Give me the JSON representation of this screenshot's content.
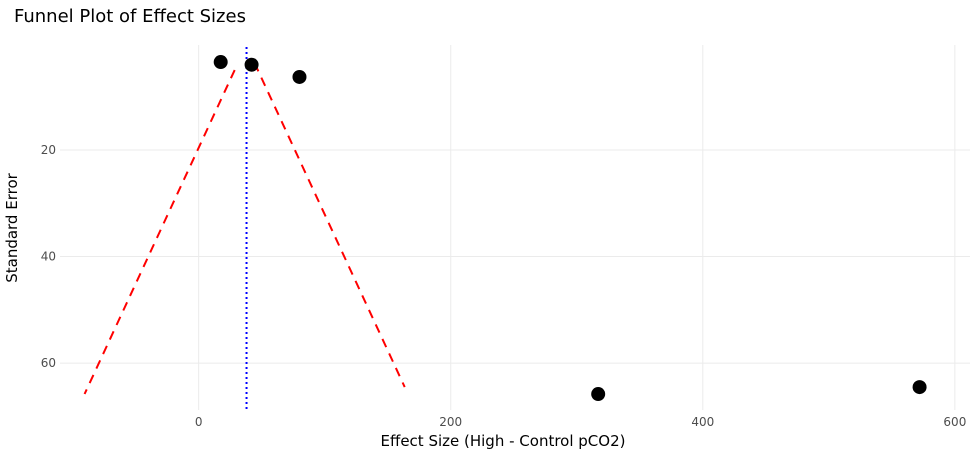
{
  "chart_data": {
    "type": "scatter",
    "title": "Funnel Plot of Effect Sizes",
    "xlabel": "Effect Size (High - Control pCO2)",
    "ylabel": "Standard Error",
    "xlim": [
      -110,
      612
    ],
    "ylim": [
      0.3,
      68.8
    ],
    "y_reversed": true,
    "grid": true,
    "x_ticks": [
      0,
      200,
      400,
      600
    ],
    "y_ticks": [
      20,
      40,
      60
    ],
    "points": [
      {
        "x": 17.5,
        "y": 3.5
      },
      {
        "x": 42,
        "y": 4.0
      },
      {
        "x": 80,
        "y": 6.3
      },
      {
        "x": 317,
        "y": 65.8
      },
      {
        "x": 572,
        "y": 64.5
      }
    ],
    "mean_effect": 38,
    "funnel_lines": [
      {
        "name": "lower",
        "from": {
          "x": 28.6,
          "y": 5.0
        },
        "to": {
          "x": -90.5,
          "y": 65.8
        }
      },
      {
        "name": "upper",
        "from": {
          "x": 44.4,
          "y": 3.7
        },
        "to": {
          "x": 163.5,
          "y": 64.5
        }
      }
    ],
    "colors": {
      "points": "#000000",
      "funnel": "#ff0000",
      "mean": "#0000ff",
      "grid": "#ebebeb"
    }
  }
}
